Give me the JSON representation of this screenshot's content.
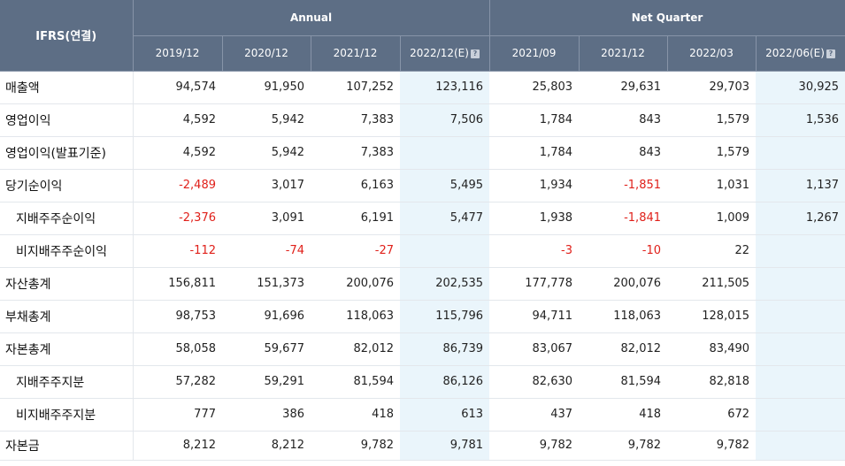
{
  "header": {
    "corner": "IFRS(연결)",
    "group_annual": "Annual",
    "group_quarter": "Net Quarter",
    "columns": [
      "2019/12",
      "2020/12",
      "2021/12",
      "2022/12(E)",
      "2021/09",
      "2021/12",
      "2022/03",
      "2022/06(E)"
    ],
    "estimate_icon": "question-mark-icon"
  },
  "colors": {
    "header_bg": "#5d6e85",
    "estimate_bg": "#eaf5fb",
    "negative": "#e0201a"
  },
  "rows": [
    {
      "label": "매출액",
      "values": [
        "94,574",
        "91,950",
        "107,252",
        "123,116",
        "25,803",
        "29,631",
        "29,703",
        "30,925"
      ]
    },
    {
      "label": "영업이익",
      "values": [
        "4,592",
        "5,942",
        "7,383",
        "7,506",
        "1,784",
        "843",
        "1,579",
        "1,536"
      ]
    },
    {
      "label": "영업이익(발표기준)",
      "values": [
        "4,592",
        "5,942",
        "7,383",
        "",
        "1,784",
        "843",
        "1,579",
        ""
      ]
    },
    {
      "label": "당기순이익",
      "values": [
        "-2,489",
        "3,017",
        "6,163",
        "5,495",
        "1,934",
        "-1,851",
        "1,031",
        "1,137"
      ]
    },
    {
      "label": "지배주주순이익",
      "values": [
        "-2,376",
        "3,091",
        "6,191",
        "5,477",
        "1,938",
        "-1,841",
        "1,009",
        "1,267"
      ]
    },
    {
      "label": "비지배주주순이익",
      "values": [
        "-112",
        "-74",
        "-27",
        "",
        "-3",
        "-10",
        "22",
        ""
      ]
    },
    {
      "label": "자산총계",
      "values": [
        "156,811",
        "151,373",
        "200,076",
        "202,535",
        "177,778",
        "200,076",
        "211,505",
        ""
      ]
    },
    {
      "label": "부채총계",
      "values": [
        "98,753",
        "91,696",
        "118,063",
        "115,796",
        "94,711",
        "118,063",
        "128,015",
        ""
      ]
    },
    {
      "label": "자본총계",
      "values": [
        "58,058",
        "59,677",
        "82,012",
        "86,739",
        "83,067",
        "82,012",
        "83,490",
        ""
      ]
    },
    {
      "label": "지배주주지분",
      "values": [
        "57,282",
        "59,291",
        "81,594",
        "86,126",
        "82,630",
        "81,594",
        "82,818",
        ""
      ]
    },
    {
      "label": "비지배주주지분",
      "values": [
        "777",
        "386",
        "418",
        "613",
        "437",
        "418",
        "672",
        ""
      ]
    },
    {
      "label": "자본금",
      "values": [
        "8,212",
        "8,212",
        "9,782",
        "9,781",
        "9,782",
        "9,782",
        "9,782",
        ""
      ]
    }
  ]
}
